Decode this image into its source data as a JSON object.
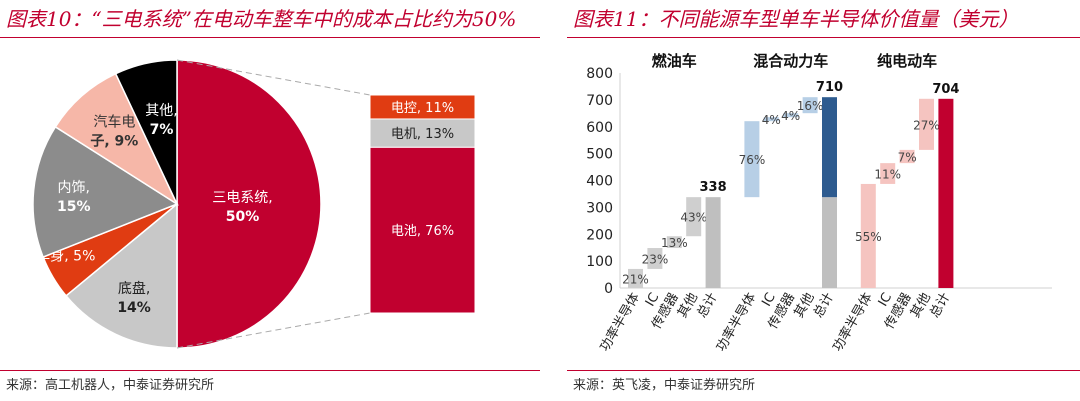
{
  "left": {
    "title": "图表10：“三电系统”在电动车整车中的成本占比约为50%",
    "source": "来源：高工机器人，中泰证券研究所",
    "colors": {
      "accent": "#c1002f"
    },
    "chart_data": {
      "type": "pie",
      "title": "“三电系统”在电动车整车中的成本占比约为50%",
      "slices": [
        {
          "label": "三电系统",
          "value": 50,
          "text": "三电系统,",
          "pct": "50%",
          "color": "#c1002f"
        },
        {
          "label": "底盘",
          "value": 14,
          "text": "底盘,",
          "pct": "14%",
          "color": "#c8c8c8"
        },
        {
          "label": "车身",
          "value": 5,
          "text": "车身, 5%",
          "pct": "",
          "color": "#e03c12"
        },
        {
          "label": "内饰",
          "value": 15,
          "text": "内饰,",
          "pct": "15%",
          "color": "#8c8c8c"
        },
        {
          "label": "汽车电子",
          "value": 9,
          "text": "汽车电",
          "pct": "子, 9%",
          "color": "#f6b7a8"
        },
        {
          "label": "其他",
          "value": 7,
          "text": "其他,",
          "pct": "7%",
          "color": "#000000"
        }
      ],
      "breakdown": {
        "of": "三电系统",
        "items": [
          {
            "label": "电控",
            "value": 11,
            "text": "电控, 11%",
            "color": "#e03c12"
          },
          {
            "label": "电机",
            "value": 13,
            "text": "电机, 13%",
            "color": "#c8c8c8"
          },
          {
            "label": "电池",
            "value": 76,
            "text": "电池, 76%",
            "color": "#c1002f"
          }
        ]
      }
    }
  },
  "right": {
    "title": "图表11：不同能源车型单车半导体价值量（美元）",
    "source": "来源：英飞凌，中泰证券研究所",
    "chart_data": {
      "type": "bar",
      "subtype": "waterfall",
      "title": "不同能源车型单车半导体价值量（美元）",
      "ylim": [
        0,
        800
      ],
      "yticks": [
        0,
        100,
        200,
        300,
        400,
        500,
        600,
        700,
        800
      ],
      "grid": false,
      "groups": [
        {
          "name": "燃油车",
          "total": 338,
          "total_label": "338",
          "components": [
            {
              "category": "功率半导体",
              "pct": "21%",
              "share": 21
            },
            {
              "category": "IC",
              "pct": "23%",
              "share": 23
            },
            {
              "category": "传感器",
              "pct": "13%",
              "share": 13
            },
            {
              "category": "其他",
              "pct": "43%",
              "share": 43
            }
          ],
          "total_category": "总计",
          "colors": {
            "component": "#cfcfcf",
            "total": "#bfbfbf"
          }
        },
        {
          "name": "混合动力车",
          "total": 710,
          "total_label": "710",
          "base": 338,
          "components": [
            {
              "category": "功率半导体",
              "pct": "76%",
              "share": 76
            },
            {
              "category": "IC",
              "pct": "4%",
              "share": 4
            },
            {
              "category": "传感器",
              "pct": "4%",
              "share": 4
            },
            {
              "category": "其他",
              "pct": "16%",
              "share": 16
            }
          ],
          "total_category": "总计",
          "colors": {
            "component": "#b7cfe6",
            "total": "#2e5b8f",
            "base": "#bfbfbf"
          }
        },
        {
          "name": "纯电动车",
          "total": 704,
          "total_label": "704",
          "components": [
            {
              "category": "功率半导体",
              "pct": "55%",
              "share": 55
            },
            {
              "category": "IC",
              "pct": "11%",
              "share": 11
            },
            {
              "category": "传感器",
              "pct": "7%",
              "share": 7
            },
            {
              "category": "其他",
              "pct": "27%",
              "share": 27
            }
          ],
          "total_category": "总计",
          "colors": {
            "component": "#f5c4c0",
            "total": "#c1002f"
          }
        }
      ]
    }
  }
}
